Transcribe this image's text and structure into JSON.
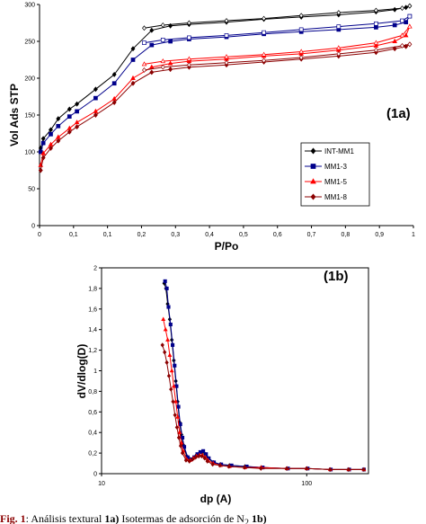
{
  "caption": {
    "figno": "Fig. 1",
    "text_a": ": Análisis textural ",
    "bold_a": "1a)",
    "text_b": " Isotermas de adsorción de N",
    "sub": "2",
    "text_c": " ",
    "bold_b": "1b)"
  },
  "chart_data": [
    {
      "type": "line",
      "panel_label": "(1a)",
      "xlabel": "P/Po",
      "ylabel": "Vol Ads STP",
      "xlim": [
        0,
        1
      ],
      "ylim": [
        0,
        300
      ],
      "x_ticks": [
        "0",
        "0,1",
        "0,1",
        "0,2",
        "0,3",
        "0,4",
        "0,5",
        "0,6",
        "0,7",
        "0,8",
        "0,9",
        "1"
      ],
      "y_ticks": [
        "0",
        "50",
        "100",
        "150",
        "200",
        "250",
        "300"
      ],
      "grid": false,
      "legend_position": "right",
      "series": [
        {
          "name": "INT-MM1",
          "color": "#000000",
          "marker": "diamond",
          "adsorption": [
            [
              0.003,
              105
            ],
            [
              0.01,
              118
            ],
            [
              0.03,
              130
            ],
            [
              0.05,
              145
            ],
            [
              0.08,
              158
            ],
            [
              0.1,
              165
            ],
            [
              0.15,
              185
            ],
            [
              0.2,
              205
            ],
            [
              0.25,
              240
            ],
            [
              0.3,
              265
            ],
            [
              0.35,
              271
            ],
            [
              0.4,
              273
            ],
            [
              0.5,
              276
            ],
            [
              0.6,
              280
            ],
            [
              0.7,
              283
            ],
            [
              0.8,
              286
            ],
            [
              0.9,
              290
            ],
            [
              0.95,
              293
            ],
            [
              0.98,
              296
            ],
            [
              0.99,
              298
            ]
          ],
          "desorption": [
            [
              0.99,
              298
            ],
            [
              0.97,
              295
            ],
            [
              0.9,
              292
            ],
            [
              0.8,
              289
            ],
            [
              0.7,
              285
            ],
            [
              0.6,
              281
            ],
            [
              0.5,
              278
            ],
            [
              0.4,
              275
            ],
            [
              0.33,
              272
            ],
            [
              0.28,
              268
            ]
          ]
        },
        {
          "name": "MM1-3",
          "color": "#00008b",
          "marker": "square",
          "adsorption": [
            [
              0.003,
              100
            ],
            [
              0.01,
              112
            ],
            [
              0.03,
              124
            ],
            [
              0.05,
              135
            ],
            [
              0.08,
              148
            ],
            [
              0.1,
              155
            ],
            [
              0.15,
              173
            ],
            [
              0.2,
              193
            ],
            [
              0.25,
              225
            ],
            [
              0.3,
              245
            ],
            [
              0.35,
              250
            ],
            [
              0.4,
              253
            ],
            [
              0.5,
              256
            ],
            [
              0.6,
              260
            ],
            [
              0.7,
              263
            ],
            [
              0.8,
              266
            ],
            [
              0.9,
              269
            ],
            [
              0.95,
              272
            ],
            [
              0.98,
              276
            ],
            [
              0.99,
              284
            ]
          ],
          "desorption": [
            [
              0.99,
              284
            ],
            [
              0.97,
              278
            ],
            [
              0.9,
              274
            ],
            [
              0.8,
              270
            ],
            [
              0.7,
              266
            ],
            [
              0.6,
              262
            ],
            [
              0.5,
              258
            ],
            [
              0.4,
              255
            ],
            [
              0.33,
              252
            ],
            [
              0.28,
              248
            ]
          ]
        },
        {
          "name": "MM1-5",
          "color": "#ff0000",
          "marker": "triangle",
          "adsorption": [
            [
              0.003,
              82
            ],
            [
              0.01,
              98
            ],
            [
              0.03,
              110
            ],
            [
              0.05,
              120
            ],
            [
              0.08,
              132
            ],
            [
              0.1,
              140
            ],
            [
              0.15,
              155
            ],
            [
              0.2,
              172
            ],
            [
              0.25,
              200
            ],
            [
              0.3,
              215
            ],
            [
              0.35,
              220
            ],
            [
              0.4,
              223
            ],
            [
              0.5,
              226
            ],
            [
              0.6,
              230
            ],
            [
              0.7,
              233
            ],
            [
              0.8,
              238
            ],
            [
              0.9,
              244
            ],
            [
              0.95,
              250
            ],
            [
              0.98,
              258
            ],
            [
              0.99,
              270
            ]
          ],
          "desorption": [
            [
              0.99,
              270
            ],
            [
              0.97,
              258
            ],
            [
              0.9,
              248
            ],
            [
              0.8,
              241
            ],
            [
              0.7,
              236
            ],
            [
              0.6,
              232
            ],
            [
              0.5,
              229
            ],
            [
              0.4,
              226
            ],
            [
              0.33,
              223
            ],
            [
              0.28,
              219
            ]
          ]
        },
        {
          "name": "MM1-8",
          "color": "#8b0000",
          "marker": "diamond",
          "adsorption": [
            [
              0.003,
              75
            ],
            [
              0.01,
              92
            ],
            [
              0.03,
              105
            ],
            [
              0.05,
              115
            ],
            [
              0.08,
              127
            ],
            [
              0.1,
              134
            ],
            [
              0.15,
              150
            ],
            [
              0.2,
              167
            ],
            [
              0.25,
              193
            ],
            [
              0.3,
              208
            ],
            [
              0.35,
              212
            ],
            [
              0.4,
              215
            ],
            [
              0.5,
              218
            ],
            [
              0.6,
              222
            ],
            [
              0.7,
              226
            ],
            [
              0.8,
              230
            ],
            [
              0.9,
              235
            ],
            [
              0.95,
              240
            ],
            [
              0.98,
              243
            ],
            [
              0.99,
              246
            ]
          ],
          "desorption": [
            [
              0.99,
              246
            ],
            [
              0.97,
              244
            ],
            [
              0.9,
              238
            ],
            [
              0.8,
              233
            ],
            [
              0.7,
              228
            ],
            [
              0.6,
              224
            ],
            [
              0.5,
              221
            ],
            [
              0.4,
              218
            ],
            [
              0.33,
              215
            ],
            [
              0.28,
              211
            ]
          ]
        }
      ]
    },
    {
      "type": "line",
      "panel_label": "(1b)",
      "xlabel": "dp (A)",
      "ylabel": "dV/dlog(D)",
      "xscale": "log",
      "xlim": [
        10,
        200
      ],
      "ylim": [
        0,
        2
      ],
      "x_ticks": [
        "10",
        "100"
      ],
      "y_ticks": [
        "0",
        "0,2",
        "0,4",
        "0,6",
        "0,8",
        "1",
        "1,2",
        "1,4",
        "1,6",
        "1,8",
        "2"
      ],
      "grid": false,
      "series": [
        {
          "name": "INT-MM1",
          "color": "#000000",
          "marker": "diamond",
          "points": [
            [
              20.2,
              1.85
            ],
            [
              20.6,
              1.8
            ],
            [
              21,
              1.65
            ],
            [
              21.5,
              1.5
            ],
            [
              22,
              1.3
            ],
            [
              22.5,
              1.1
            ],
            [
              23,
              0.9
            ],
            [
              23.5,
              0.7
            ],
            [
              24,
              0.5
            ],
            [
              24.5,
              0.38
            ],
            [
              25,
              0.28
            ],
            [
              26,
              0.17
            ],
            [
              27,
              0.14
            ],
            [
              28,
              0.15
            ],
            [
              29,
              0.18
            ],
            [
              30,
              0.2
            ],
            [
              31,
              0.21
            ],
            [
              32,
              0.19
            ],
            [
              33,
              0.15
            ],
            [
              35,
              0.11
            ],
            [
              38,
              0.09
            ],
            [
              42,
              0.08
            ],
            [
              50,
              0.07
            ],
            [
              60,
              0.06
            ],
            [
              80,
              0.05
            ],
            [
              100,
              0.05
            ],
            [
              130,
              0.04
            ],
            [
              160,
              0.04
            ],
            [
              190,
              0.04
            ]
          ]
        },
        {
          "name": "MM1-3",
          "color": "#00008b",
          "marker": "square",
          "points": [
            [
              20.4,
              1.87
            ],
            [
              20.8,
              1.8
            ],
            [
              21.2,
              1.62
            ],
            [
              21.7,
              1.45
            ],
            [
              22.2,
              1.25
            ],
            [
              22.7,
              1.05
            ],
            [
              23.2,
              0.85
            ],
            [
              23.7,
              0.65
            ],
            [
              24.2,
              0.48
            ],
            [
              24.8,
              0.35
            ],
            [
              25.3,
              0.26
            ],
            [
              26.3,
              0.16
            ],
            [
              27.3,
              0.14
            ],
            [
              28.3,
              0.16
            ],
            [
              29.3,
              0.19
            ],
            [
              30.3,
              0.21
            ],
            [
              31.3,
              0.22
            ],
            [
              32.3,
              0.19
            ],
            [
              33.3,
              0.15
            ],
            [
              35.3,
              0.11
            ],
            [
              38.3,
              0.09
            ],
            [
              43,
              0.08
            ],
            [
              51,
              0.07
            ],
            [
              61,
              0.06
            ],
            [
              81,
              0.05
            ],
            [
              101,
              0.05
            ],
            [
              131,
              0.04
            ],
            [
              161,
              0.04
            ],
            [
              190,
              0.04
            ]
          ]
        },
        {
          "name": "MM1-5",
          "color": "#ff0000",
          "marker": "triangle",
          "points": [
            [
              20,
              1.5
            ],
            [
              20.5,
              1.4
            ],
            [
              21,
              1.3
            ],
            [
              21.5,
              1.15
            ],
            [
              22,
              1.0
            ],
            [
              22.5,
              0.85
            ],
            [
              23,
              0.7
            ],
            [
              23.5,
              0.55
            ],
            [
              24,
              0.4
            ],
            [
              24.5,
              0.3
            ],
            [
              25,
              0.22
            ],
            [
              26,
              0.14
            ],
            [
              27,
              0.13
            ],
            [
              28,
              0.15
            ],
            [
              29,
              0.17
            ],
            [
              30,
              0.18
            ],
            [
              31,
              0.18
            ],
            [
              32,
              0.16
            ],
            [
              33,
              0.13
            ],
            [
              35,
              0.1
            ],
            [
              38,
              0.08
            ],
            [
              42,
              0.07
            ],
            [
              50,
              0.06
            ],
            [
              60,
              0.06
            ],
            [
              80,
              0.05
            ],
            [
              100,
              0.05
            ],
            [
              130,
              0.04
            ],
            [
              160,
              0.04
            ],
            [
              190,
              0.04
            ]
          ]
        },
        {
          "name": "MM1-8",
          "color": "#8b0000",
          "marker": "diamond",
          "points": [
            [
              19.8,
              1.25
            ],
            [
              20.3,
              1.18
            ],
            [
              20.8,
              1.08
            ],
            [
              21.3,
              0.95
            ],
            [
              21.8,
              0.82
            ],
            [
              22.3,
              0.7
            ],
            [
              22.8,
              0.57
            ],
            [
              23.3,
              0.45
            ],
            [
              23.8,
              0.35
            ],
            [
              24.3,
              0.27
            ],
            [
              24.8,
              0.2
            ],
            [
              25.8,
              0.13
            ],
            [
              26.8,
              0.12
            ],
            [
              27.8,
              0.14
            ],
            [
              28.8,
              0.16
            ],
            [
              29.8,
              0.17
            ],
            [
              30.8,
              0.17
            ],
            [
              31.8,
              0.15
            ],
            [
              32.8,
              0.12
            ],
            [
              34.8,
              0.09
            ],
            [
              37.8,
              0.08
            ],
            [
              41.8,
              0.07
            ],
            [
              49.8,
              0.06
            ],
            [
              59.8,
              0.05
            ],
            [
              79.8,
              0.05
            ],
            [
              99.8,
              0.05
            ],
            [
              129.8,
              0.04
            ],
            [
              159.8,
              0.04
            ],
            [
              189.8,
              0.04
            ]
          ]
        }
      ]
    }
  ]
}
